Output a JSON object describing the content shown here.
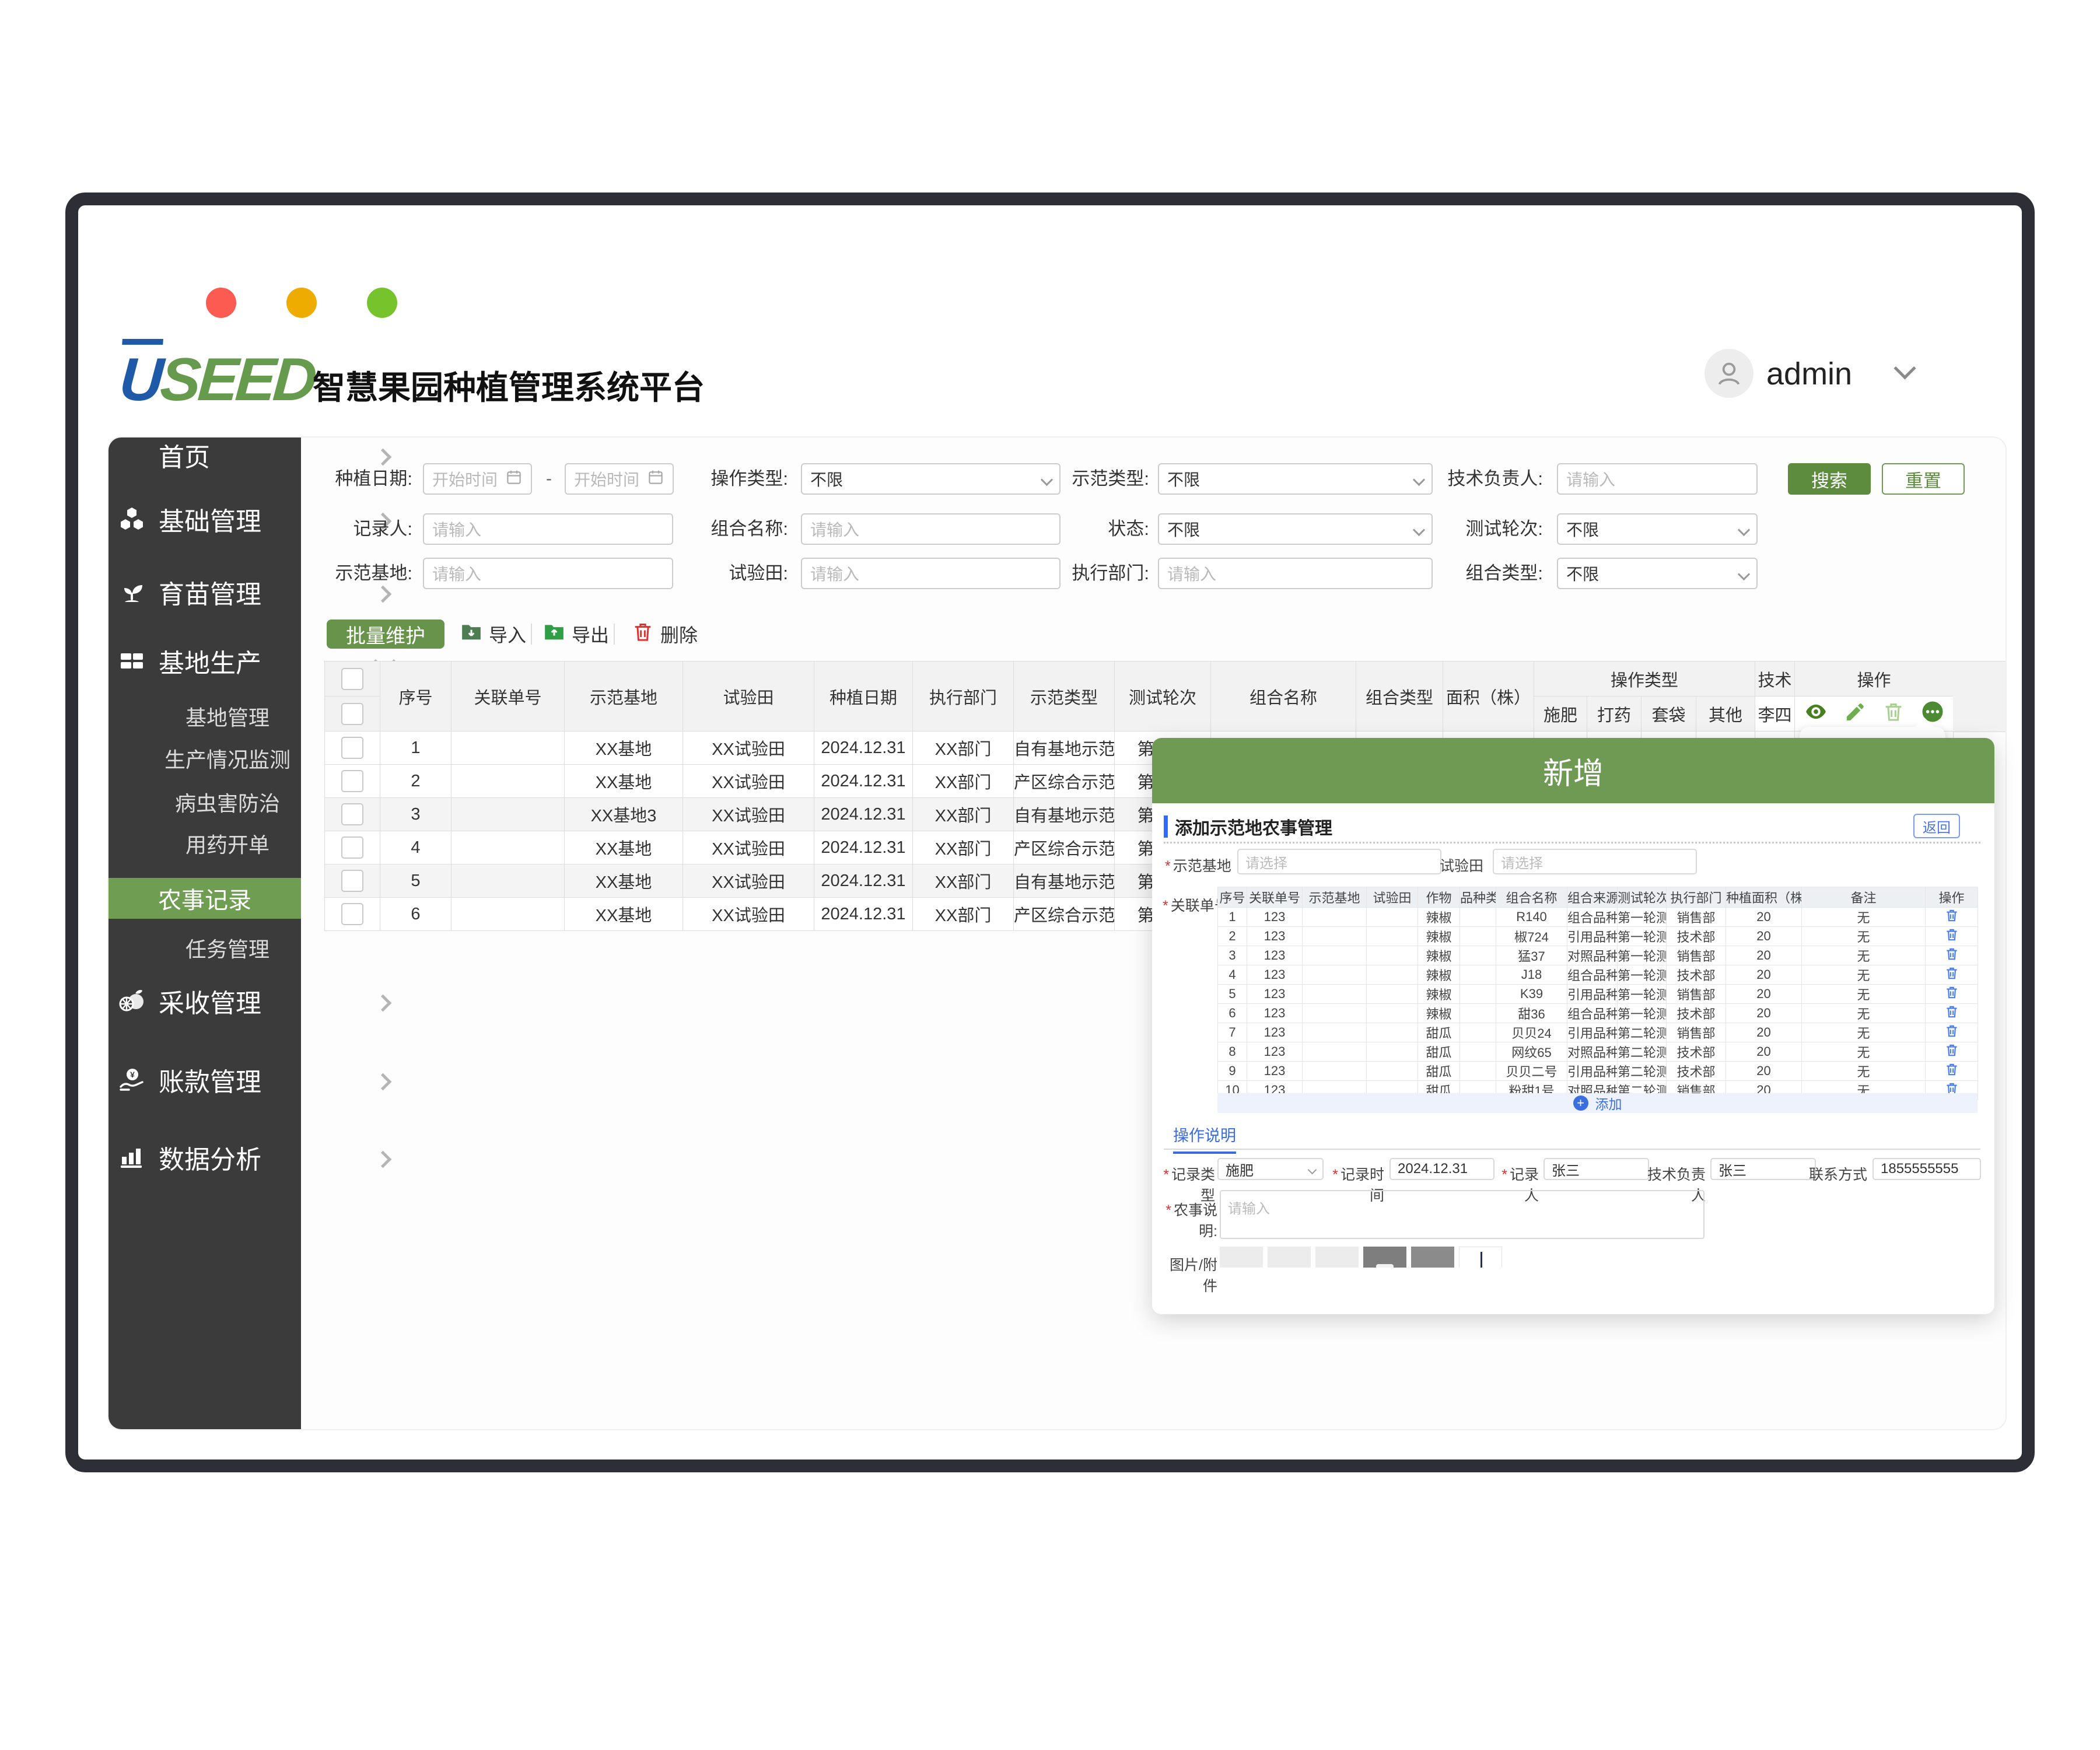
{
  "colors": {
    "primary_green": "#5d8c3e",
    "modal_green": "#6e9a54",
    "sidebar_active_green": "#6f9e52",
    "link_blue": "#3b6fe0",
    "frame_dark": "#2e2e36",
    "light_red": "#fb5b51",
    "light_yellow": "#eeab00",
    "light_green": "#77c32c"
  },
  "header": {
    "logo_u": "U",
    "logo_rest": "SEED",
    "app_title": "智慧果园种植管理系统平台",
    "user": "admin"
  },
  "sidebar": {
    "items": [
      {
        "label": "首页",
        "type": "main",
        "icon": null,
        "arrow": "right"
      },
      {
        "label": "基础管理",
        "type": "main",
        "icon": "hexagons-icon",
        "arrow": "right"
      },
      {
        "label": "育苗管理",
        "type": "main",
        "icon": "seedling-icon",
        "arrow": "right"
      },
      {
        "label": "基地生产",
        "type": "main",
        "icon": "bricks-icon",
        "arrow": "down",
        "expanded": true
      },
      {
        "label": "基地管理",
        "type": "sub"
      },
      {
        "label": "生产情况监测",
        "type": "sub"
      },
      {
        "label": "病虫害防治",
        "type": "sub"
      },
      {
        "label": "用药开单",
        "type": "sub"
      },
      {
        "label": "农事记录",
        "type": "active"
      },
      {
        "label": "任务管理",
        "type": "sub"
      },
      {
        "label": "采收管理",
        "type": "main",
        "icon": "fruit-icon",
        "arrow": "right"
      },
      {
        "label": "账款管理",
        "type": "main",
        "icon": "coin-hand-icon",
        "arrow": "right"
      },
      {
        "label": "数据分析",
        "type": "main",
        "icon": "bar-chart-icon",
        "arrow": "right"
      }
    ]
  },
  "filters": {
    "rows": [
      [
        {
          "label": "种植日期:",
          "type": "daterange",
          "placeholder": "开始时间"
        },
        {
          "label": "操作类型:",
          "type": "select",
          "value": "不限"
        },
        {
          "label": "示范类型:",
          "type": "select",
          "value": "不限"
        },
        {
          "label": "技术负责人:",
          "type": "text",
          "placeholder": "请输入"
        }
      ],
      [
        {
          "label": "记录人:",
          "type": "text",
          "placeholder": "请输入"
        },
        {
          "label": "组合名称:",
          "type": "text",
          "placeholder": "请输入"
        },
        {
          "label": "状态:",
          "type": "select",
          "value": "不限"
        },
        {
          "label": "测试轮次:",
          "type": "select",
          "value": "不限"
        }
      ],
      [
        {
          "label": "示范基地:",
          "type": "text",
          "placeholder": "请输入"
        },
        {
          "label": "试验田:",
          "type": "text",
          "placeholder": "请输入"
        },
        {
          "label": "执行部门:",
          "type": "text",
          "placeholder": "请输入"
        },
        {
          "label": "组合类型:",
          "type": "select",
          "value": "不限"
        }
      ]
    ],
    "search_label": "搜索",
    "reset_label": "重置"
  },
  "toolbar": {
    "batch_label": "批量维护",
    "import_label": "导入",
    "export_label": "导出",
    "delete_label": "删除"
  },
  "main_table": {
    "columns": [
      "序号",
      "关联单号",
      "示范基地",
      "试验田",
      "种植日期",
      "执行部门",
      "示范类型",
      "测试轮次",
      "组合名称",
      "组合类型",
      "面积（株）"
    ],
    "group_header": "操作类型",
    "group_columns": [
      "施肥",
      "打药",
      "套袋",
      "其他"
    ],
    "tech_header": "技术",
    "tech_value": "李四",
    "ops_header": "操作",
    "rows": [
      {
        "no": "1",
        "order": "",
        "base": "XX基地",
        "field": "XX试验田",
        "date": "2024.12.31",
        "dept": "XX部门",
        "type": "自有基地示范",
        "round": "第一轮"
      },
      {
        "no": "2",
        "order": "",
        "base": "XX基地",
        "field": "XX试验田",
        "date": "2024.12.31",
        "dept": "XX部门",
        "type": "产区综合示范",
        "round": "第一轮"
      },
      {
        "no": "3",
        "order": "",
        "base": "XX基地3",
        "field": "XX试验田",
        "date": "2024.12.31",
        "dept": "XX部门",
        "type": "自有基地示范",
        "round": "第一轮"
      },
      {
        "no": "4",
        "order": "",
        "base": "XX基地",
        "field": "XX试验田",
        "date": "2024.12.31",
        "dept": "XX部门",
        "type": "产区综合示范",
        "round": "第二轮"
      },
      {
        "no": "5",
        "order": "",
        "base": "XX基地",
        "field": "XX试验田",
        "date": "2024.12.31",
        "dept": "XX部门",
        "type": "自有基地示范",
        "round": "第二轮"
      },
      {
        "no": "6",
        "order": "",
        "base": "XX基地",
        "field": "XX试验田",
        "date": "2024.12.31",
        "dept": "XX部门",
        "type": "产区综合示范",
        "round": "第二轮"
      }
    ]
  },
  "modal": {
    "title": "新增",
    "section_title": "添加示范地农事管理",
    "back_label": "返回",
    "base_label": "示范基地",
    "base_placeholder": "请选择",
    "field_label": "试验田",
    "field_placeholder": "请选择",
    "order_label": "关联单号",
    "table": {
      "headers": [
        "序号",
        "关联单号",
        "示范基地",
        "试验田",
        "作物",
        "品种类型",
        "组合名称",
        "组合来源",
        "测试轮次",
        "执行部门",
        "种植面积（株）",
        "备注",
        "操作"
      ],
      "rows": [
        [
          "1",
          "123",
          "",
          "",
          "辣椒",
          "",
          "R140",
          "组合品种",
          "第一轮测试",
          "销售部",
          "20",
          "无"
        ],
        [
          "2",
          "123",
          "",
          "",
          "辣椒",
          "",
          "椒724",
          "引用品种",
          "第一轮测试",
          "技术部",
          "20",
          "无"
        ],
        [
          "3",
          "123",
          "",
          "",
          "辣椒",
          "",
          "猛37",
          "对照品种",
          "第一轮测试",
          "销售部",
          "20",
          "无"
        ],
        [
          "4",
          "123",
          "",
          "",
          "辣椒",
          "",
          "J18",
          "组合品种",
          "第一轮测试",
          "技术部",
          "20",
          "无"
        ],
        [
          "5",
          "123",
          "",
          "",
          "辣椒",
          "",
          "K39",
          "引用品种",
          "第一轮测试",
          "销售部",
          "20",
          "无"
        ],
        [
          "6",
          "123",
          "",
          "",
          "辣椒",
          "",
          "甜36",
          "组合品种",
          "第一轮测试",
          "技术部",
          "20",
          "无"
        ],
        [
          "7",
          "123",
          "",
          "",
          "甜瓜",
          "",
          "贝贝24",
          "引用品种",
          "第二轮测试",
          "销售部",
          "20",
          "无"
        ],
        [
          "8",
          "123",
          "",
          "",
          "甜瓜",
          "",
          "网纹65",
          "对照品种",
          "第二轮测试",
          "技术部",
          "20",
          "无"
        ],
        [
          "9",
          "123",
          "",
          "",
          "甜瓜",
          "",
          "贝贝二号",
          "引用品种",
          "第二轮测试",
          "技术部",
          "20",
          "无"
        ],
        [
          "10",
          "123",
          "",
          "",
          "甜瓜",
          "",
          "粉甜1号",
          "对照品种",
          "第二轮测试",
          "销售部",
          "20",
          "无"
        ]
      ],
      "add_label": "添加"
    },
    "ops_tab": "操作说明",
    "form": {
      "record_type_label": "记录类型",
      "record_type_value": "施肥",
      "record_time_label": "记录时间",
      "record_time_value": "2024.12.31",
      "recorder_label": "记录人",
      "recorder_value": "张三",
      "tech_label": "技术负责人",
      "tech_value": "张三",
      "contact_label": "联系方式",
      "contact_value": "1855555555",
      "desc_label": "农事说明:",
      "desc_placeholder": "请输入",
      "attach_label": "图片/附件",
      "attach_squares": [
        "light",
        "light",
        "light",
        "darkcam",
        "dark",
        "cursor"
      ]
    }
  }
}
